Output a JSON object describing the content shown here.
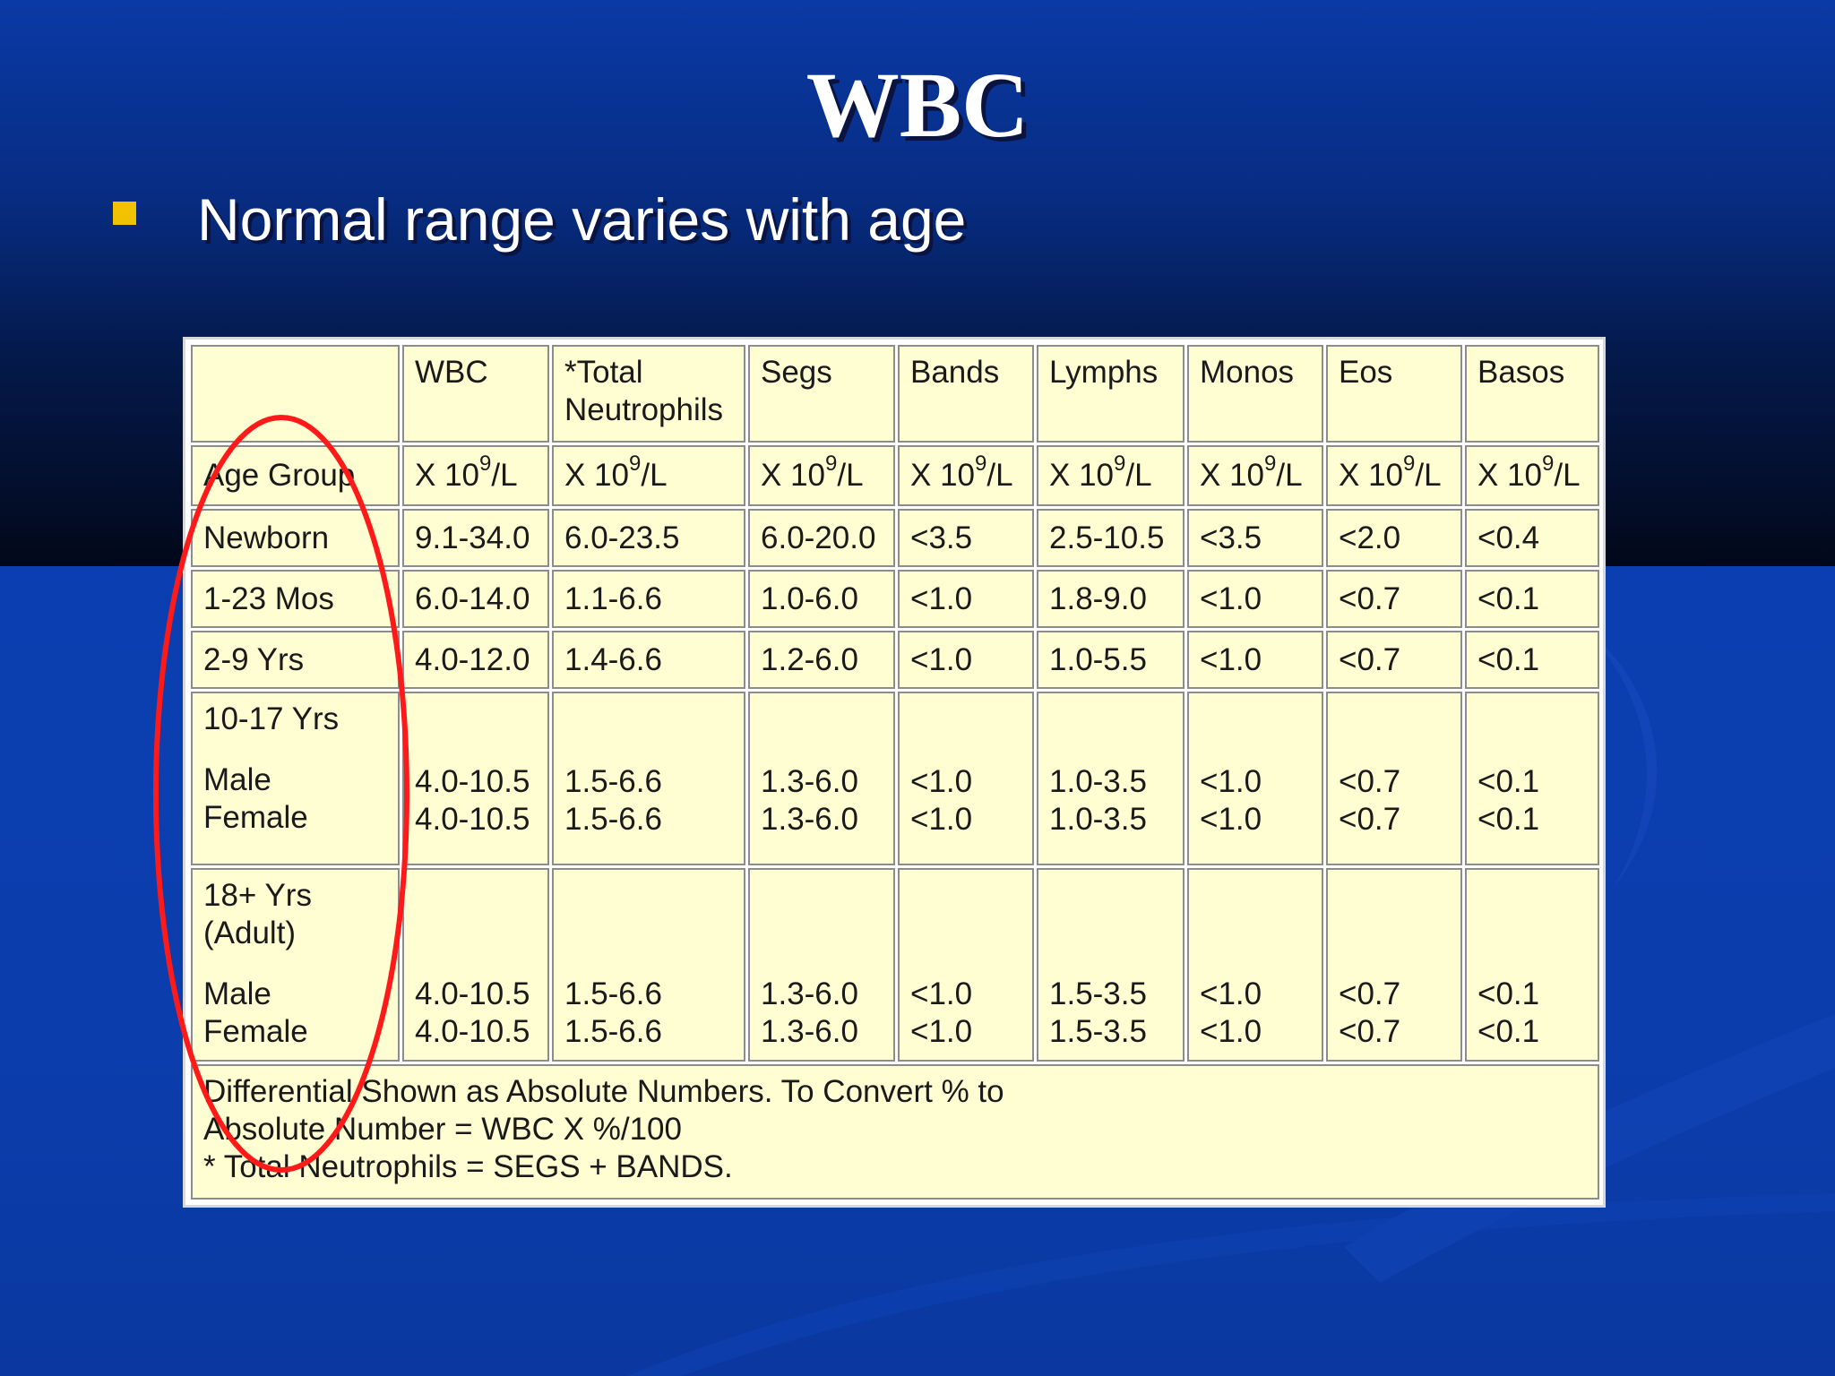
{
  "slide": {
    "title": "WBC",
    "bullet": "Normal range varies with age",
    "colors": {
      "bullet": "#f2c200",
      "highlight_ellipse": "#ff1a1a",
      "table_cell": "#fffdd2"
    }
  },
  "table": {
    "headers": [
      "",
      "WBC",
      "*Total Neutrophils",
      "Segs",
      "Bands",
      "Lymphs",
      "Monos",
      "Eos",
      "Basos"
    ],
    "unit_label": "Age Group",
    "unit_prefix": "X 10",
    "unit_exp": "9",
    "unit_suffix": "/L",
    "rows": [
      [
        "Newborn",
        "9.1-34.0",
        "6.0-23.5",
        "6.0-20.0",
        "<3.5",
        "2.5-10.5",
        "<3.5",
        "<2.0",
        "<0.4"
      ],
      [
        "1-23 Mos",
        "6.0-14.0",
        "1.1-6.6",
        "1.0-6.0",
        "<1.0",
        "1.8-9.0",
        "<1.0",
        "<0.7",
        "<0.1"
      ],
      [
        "2-9 Yrs",
        "4.0-12.0",
        "1.4-6.6",
        "1.2-6.0",
        "<1.0",
        "1.0-5.5",
        "<1.0",
        "<0.7",
        "<0.1"
      ]
    ],
    "teen": {
      "group": "10-17 Yrs",
      "male_label": "Male",
      "female_label": "Female",
      "male": [
        "4.0-10.5",
        "1.5-6.6",
        "1.3-6.0",
        "<1.0",
        "1.0-3.5",
        "<1.0",
        "<0.7",
        "<0.1"
      ],
      "female": [
        "4.0-10.5",
        "1.5-6.6",
        "1.3-6.0",
        "<1.0",
        "1.0-3.5",
        "<1.0",
        "<0.7",
        "<0.1"
      ]
    },
    "adult": {
      "group_line1": "18+ Yrs",
      "group_line2": "(Adult)",
      "male_label": "Male",
      "female_label": "Female",
      "male": [
        "4.0-10.5",
        "1.5-6.6",
        "1.3-6.0",
        "<1.0",
        "1.5-3.5",
        "<1.0",
        "<0.7",
        "<0.1"
      ],
      "female": [
        "4.0-10.5",
        "1.5-6.6",
        "1.3-6.0",
        "<1.0",
        "1.5-3.5",
        "<1.0",
        "<0.7",
        "<0.1"
      ]
    },
    "footnote": {
      "line1": "Differential Shown as Absolute Numbers. To Convert % to",
      "line2": "Absolute Number = WBC X %/100",
      "line3": "* Total Neutrophils = SEGS + BANDS."
    }
  }
}
